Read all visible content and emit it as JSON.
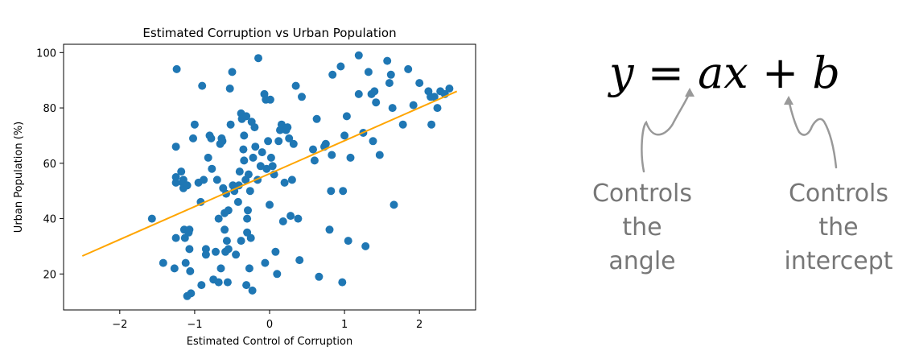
{
  "chart_data": {
    "type": "scatter",
    "title": "Estimated Corruption vs Urban Population",
    "xlabel": "Estimated Control of Corruption",
    "ylabel": "Urban Population (%)",
    "xlim": [
      -2.75,
      2.75
    ],
    "ylim": [
      7,
      103
    ],
    "xticks": [
      -2,
      -1,
      0,
      1,
      2
    ],
    "yticks": [
      20,
      40,
      60,
      80,
      100
    ],
    "x_tick_labels": [
      "−2",
      "−1",
      "0",
      "1",
      "2"
    ],
    "y_tick_labels": [
      "20",
      "40",
      "60",
      "80",
      "100"
    ],
    "grid": false,
    "legend": "none",
    "series": [
      {
        "kind": "points",
        "color": "#1f77b4",
        "points": [
          [
            -1.57,
            40
          ],
          [
            -1.42,
            24
          ],
          [
            -1.27,
            22
          ],
          [
            -1.25,
            66
          ],
          [
            -1.25,
            33
          ],
          [
            -1.25,
            53
          ],
          [
            -1.25,
            55
          ],
          [
            -1.24,
            94
          ],
          [
            -1.18,
            57
          ],
          [
            -1.16,
            53
          ],
          [
            -1.15,
            54
          ],
          [
            -1.15,
            51
          ],
          [
            -1.14,
            36
          ],
          [
            -1.13,
            33
          ],
          [
            -1.12,
            24
          ],
          [
            -1.1,
            52
          ],
          [
            -1.08,
            35
          ],
          [
            -1.07,
            36
          ],
          [
            -1.07,
            29
          ],
          [
            -1.06,
            21
          ],
          [
            -1.05,
            13
          ],
          [
            -1.1,
            12
          ],
          [
            -1.02,
            69
          ],
          [
            -1.0,
            74
          ],
          [
            -0.95,
            53
          ],
          [
            -0.92,
            46
          ],
          [
            -0.91,
            16
          ],
          [
            -0.9,
            88
          ],
          [
            -0.88,
            54
          ],
          [
            -0.85,
            29
          ],
          [
            -0.85,
            27
          ],
          [
            -0.82,
            62
          ],
          [
            -0.8,
            70
          ],
          [
            -0.78,
            69
          ],
          [
            -0.77,
            58
          ],
          [
            -0.75,
            18
          ],
          [
            -0.72,
            28
          ],
          [
            -0.7,
            54
          ],
          [
            -0.68,
            17
          ],
          [
            -0.68,
            40
          ],
          [
            -0.66,
            67
          ],
          [
            -0.65,
            22
          ],
          [
            -0.64,
            69
          ],
          [
            -0.63,
            68
          ],
          [
            -0.62,
            51
          ],
          [
            -0.6,
            42
          ],
          [
            -0.6,
            36
          ],
          [
            -0.59,
            28
          ],
          [
            -0.58,
            49
          ],
          [
            -0.57,
            32
          ],
          [
            -0.56,
            17
          ],
          [
            -0.55,
            43
          ],
          [
            -0.55,
            29
          ],
          [
            -0.53,
            87
          ],
          [
            -0.52,
            74
          ],
          [
            -0.5,
            93
          ],
          [
            -0.49,
            52
          ],
          [
            -0.47,
            50
          ],
          [
            -0.45,
            27
          ],
          [
            -0.42,
            46
          ],
          [
            -0.41,
            52
          ],
          [
            -0.4,
            57
          ],
          [
            -0.38,
            78
          ],
          [
            -0.38,
            32
          ],
          [
            -0.37,
            76
          ],
          [
            -0.35,
            65
          ],
          [
            -0.34,
            61
          ],
          [
            -0.34,
            70
          ],
          [
            -0.32,
            54
          ],
          [
            -0.31,
            77
          ],
          [
            -0.31,
            16
          ],
          [
            -0.3,
            40
          ],
          [
            -0.3,
            35
          ],
          [
            -0.29,
            43
          ],
          [
            -0.28,
            56
          ],
          [
            -0.27,
            22
          ],
          [
            -0.26,
            50
          ],
          [
            -0.25,
            33
          ],
          [
            -0.24,
            75
          ],
          [
            -0.23,
            14
          ],
          [
            -0.22,
            62
          ],
          [
            -0.2,
            73
          ],
          [
            -0.19,
            66
          ],
          [
            -0.16,
            54
          ],
          [
            -0.15,
            98
          ],
          [
            -0.12,
            59
          ],
          [
            -0.1,
            64
          ],
          [
            -0.07,
            85
          ],
          [
            -0.06,
            24
          ],
          [
            -0.05,
            83
          ],
          [
            -0.04,
            58
          ],
          [
            -0.02,
            68
          ],
          [
            0.0,
            45
          ],
          [
            0.01,
            83
          ],
          [
            0.02,
            62
          ],
          [
            0.04,
            59
          ],
          [
            0.06,
            56
          ],
          [
            0.08,
            28
          ],
          [
            0.1,
            20
          ],
          [
            0.12,
            68
          ],
          [
            0.14,
            72
          ],
          [
            0.16,
            74
          ],
          [
            0.18,
            39
          ],
          [
            0.2,
            53
          ],
          [
            0.22,
            72
          ],
          [
            0.24,
            73
          ],
          [
            0.26,
            69
          ],
          [
            0.28,
            41
          ],
          [
            0.3,
            54
          ],
          [
            0.32,
            67
          ],
          [
            0.35,
            88
          ],
          [
            0.38,
            40
          ],
          [
            0.4,
            25
          ],
          [
            0.43,
            84
          ],
          [
            0.58,
            65
          ],
          [
            0.6,
            61
          ],
          [
            0.63,
            76
          ],
          [
            0.66,
            19
          ],
          [
            0.73,
            66
          ],
          [
            0.75,
            67
          ],
          [
            0.8,
            36
          ],
          [
            0.82,
            50
          ],
          [
            0.83,
            63
          ],
          [
            0.84,
            92
          ],
          [
            0.95,
            95
          ],
          [
            0.97,
            17
          ],
          [
            0.98,
            50
          ],
          [
            1.0,
            70
          ],
          [
            1.03,
            77
          ],
          [
            1.05,
            32
          ],
          [
            1.08,
            62
          ],
          [
            1.19,
            99
          ],
          [
            1.19,
            85
          ],
          [
            1.25,
            71
          ],
          [
            1.28,
            30
          ],
          [
            1.32,
            93
          ],
          [
            1.36,
            85
          ],
          [
            1.38,
            68
          ],
          [
            1.4,
            86
          ],
          [
            1.42,
            82
          ],
          [
            1.47,
            63
          ],
          [
            1.57,
            97
          ],
          [
            1.6,
            89
          ],
          [
            1.62,
            92
          ],
          [
            1.64,
            80
          ],
          [
            1.66,
            45
          ],
          [
            1.78,
            74
          ],
          [
            1.85,
            94
          ],
          [
            1.92,
            81
          ],
          [
            2.0,
            89
          ],
          [
            2.12,
            86
          ],
          [
            2.15,
            84
          ],
          [
            2.16,
            74
          ],
          [
            2.2,
            84
          ],
          [
            2.24,
            80
          ],
          [
            2.28,
            86
          ],
          [
            2.34,
            85
          ],
          [
            2.4,
            87
          ]
        ]
      },
      {
        "kind": "line",
        "color": "orange",
        "points": [
          [
            -2.5,
            26.5
          ],
          [
            2.5,
            86
          ]
        ]
      }
    ]
  },
  "equation": {
    "y": "y",
    "eq": "=",
    "ax": "ax",
    "plus": "+",
    "b": "b"
  },
  "annotations": {
    "angle": [
      "Controls",
      "the",
      "angle"
    ],
    "intercept": [
      "Controls",
      "the",
      "intercept"
    ],
    "arrow_color": "#999999",
    "text_color": "#777777"
  }
}
